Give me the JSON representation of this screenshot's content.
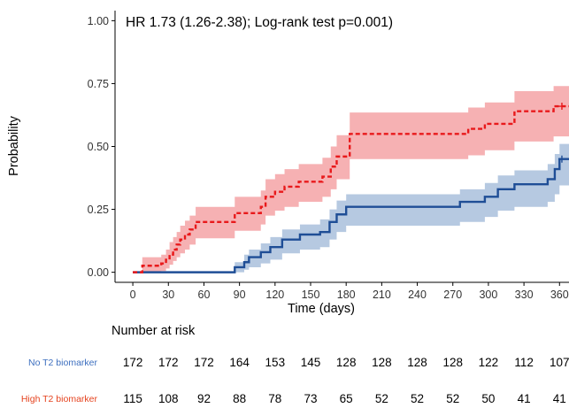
{
  "chart_data": {
    "type": "line",
    "subtype": "kaplan-meier-cumulative-incidence",
    "annotation": "HR 1.73 (1.26-2.38); Log-rank test p=0.001)",
    "xlabel": "Time (days)",
    "ylabel": "Probability",
    "x_ticks": [
      0,
      30,
      60,
      90,
      120,
      150,
      180,
      210,
      240,
      270,
      300,
      330,
      360
    ],
    "x_tick_labels": [
      "0",
      "30",
      "60",
      "90",
      "120",
      "150",
      "180",
      "210",
      "240",
      "270",
      "300",
      "330",
      "360"
    ],
    "y_ticks": [
      0,
      0.25,
      0.5,
      0.75,
      1.0
    ],
    "y_tick_labels": [
      "0.00",
      "0.25",
      "0.50",
      "0.75",
      "1.00"
    ],
    "xlim": [
      -15,
      368
    ],
    "ylim": [
      -0.04,
      1.04
    ],
    "grid": false,
    "series": [
      {
        "name": "High T2 biomarker",
        "color": "#e8191b",
        "band_color": "#f4a3a6",
        "dash": true,
        "censor_marks": [
          {
            "x": 362,
            "y": 0.66
          }
        ],
        "steps": [
          {
            "x": 0,
            "y": 0.0,
            "lo": 0.0,
            "hi": 0.0
          },
          {
            "x": 8,
            "y": 0.026,
            "lo": 0.0,
            "hi": 0.06
          },
          {
            "x": 24,
            "y": 0.035,
            "lo": 0.005,
            "hi": 0.07
          },
          {
            "x": 28,
            "y": 0.05,
            "lo": 0.015,
            "hi": 0.09
          },
          {
            "x": 31,
            "y": 0.07,
            "lo": 0.03,
            "hi": 0.12
          },
          {
            "x": 34,
            "y": 0.09,
            "lo": 0.045,
            "hi": 0.14
          },
          {
            "x": 37,
            "y": 0.11,
            "lo": 0.06,
            "hi": 0.16
          },
          {
            "x": 40,
            "y": 0.13,
            "lo": 0.075,
            "hi": 0.185
          },
          {
            "x": 44,
            "y": 0.15,
            "lo": 0.09,
            "hi": 0.205
          },
          {
            "x": 48,
            "y": 0.17,
            "lo": 0.11,
            "hi": 0.225
          },
          {
            "x": 53,
            "y": 0.2,
            "lo": 0.135,
            "hi": 0.26
          },
          {
            "x": 86,
            "y": 0.235,
            "lo": 0.165,
            "hi": 0.3
          },
          {
            "x": 108,
            "y": 0.26,
            "lo": 0.19,
            "hi": 0.325
          },
          {
            "x": 112,
            "y": 0.3,
            "lo": 0.225,
            "hi": 0.37
          },
          {
            "x": 120,
            "y": 0.32,
            "lo": 0.245,
            "hi": 0.39
          },
          {
            "x": 128,
            "y": 0.34,
            "lo": 0.26,
            "hi": 0.41
          },
          {
            "x": 140,
            "y": 0.36,
            "lo": 0.28,
            "hi": 0.43
          },
          {
            "x": 160,
            "y": 0.38,
            "lo": 0.3,
            "hi": 0.455
          },
          {
            "x": 167,
            "y": 0.42,
            "lo": 0.33,
            "hi": 0.5
          },
          {
            "x": 172,
            "y": 0.46,
            "lo": 0.37,
            "hi": 0.545
          },
          {
            "x": 183,
            "y": 0.55,
            "lo": 0.45,
            "hi": 0.635
          },
          {
            "x": 283,
            "y": 0.57,
            "lo": 0.465,
            "hi": 0.655
          },
          {
            "x": 297,
            "y": 0.59,
            "lo": 0.485,
            "hi": 0.675
          },
          {
            "x": 322,
            "y": 0.64,
            "lo": 0.52,
            "hi": 0.72
          },
          {
            "x": 355,
            "y": 0.66,
            "lo": 0.54,
            "hi": 0.74
          },
          {
            "x": 368,
            "y": 0.66,
            "lo": 0.54,
            "hi": 0.74
          }
        ]
      },
      {
        "name": "No T2 biomarker",
        "color": "#1f4e96",
        "band_color": "#a9bfdc",
        "dash": false,
        "censor_marks": [
          {
            "x": 362,
            "y": 0.45
          }
        ],
        "steps": [
          {
            "x": 0,
            "y": 0.0,
            "lo": 0.0,
            "hi": 0.0
          },
          {
            "x": 86,
            "y": 0.02,
            "lo": 0.0,
            "hi": 0.04
          },
          {
            "x": 94,
            "y": 0.04,
            "lo": 0.01,
            "hi": 0.07
          },
          {
            "x": 98,
            "y": 0.06,
            "lo": 0.02,
            "hi": 0.09
          },
          {
            "x": 108,
            "y": 0.08,
            "lo": 0.035,
            "hi": 0.115
          },
          {
            "x": 116,
            "y": 0.1,
            "lo": 0.05,
            "hi": 0.14
          },
          {
            "x": 126,
            "y": 0.13,
            "lo": 0.075,
            "hi": 0.17
          },
          {
            "x": 141,
            "y": 0.15,
            "lo": 0.09,
            "hi": 0.19
          },
          {
            "x": 158,
            "y": 0.16,
            "lo": 0.1,
            "hi": 0.21
          },
          {
            "x": 166,
            "y": 0.2,
            "lo": 0.13,
            "hi": 0.25
          },
          {
            "x": 172,
            "y": 0.23,
            "lo": 0.16,
            "hi": 0.285
          },
          {
            "x": 180,
            "y": 0.26,
            "lo": 0.185,
            "hi": 0.31
          },
          {
            "x": 276,
            "y": 0.28,
            "lo": 0.2,
            "hi": 0.33
          },
          {
            "x": 297,
            "y": 0.3,
            "lo": 0.22,
            "hi": 0.355
          },
          {
            "x": 308,
            "y": 0.33,
            "lo": 0.245,
            "hi": 0.385
          },
          {
            "x": 322,
            "y": 0.35,
            "lo": 0.26,
            "hi": 0.405
          },
          {
            "x": 350,
            "y": 0.37,
            "lo": 0.28,
            "hi": 0.43
          },
          {
            "x": 356,
            "y": 0.41,
            "lo": 0.31,
            "hi": 0.47
          },
          {
            "x": 360,
            "y": 0.45,
            "lo": 0.345,
            "hi": 0.51
          },
          {
            "x": 368,
            "y": 0.45,
            "lo": 0.345,
            "hi": 0.51
          }
        ]
      }
    ],
    "risk_table": {
      "title": "Number at risk",
      "rows": [
        {
          "label": "No T2 biomarker",
          "color": "#3d6fbf",
          "values": [
            "172",
            "172",
            "172",
            "164",
            "153",
            "145",
            "128",
            "128",
            "128",
            "128",
            "122",
            "112",
            "107"
          ]
        },
        {
          "label": "High T2 biomarker",
          "color": "#e5431f",
          "values": [
            "115",
            "108",
            "92",
            "88",
            "78",
            "73",
            "65",
            "52",
            "52",
            "52",
            "50",
            "41",
            "41"
          ]
        }
      ]
    }
  }
}
